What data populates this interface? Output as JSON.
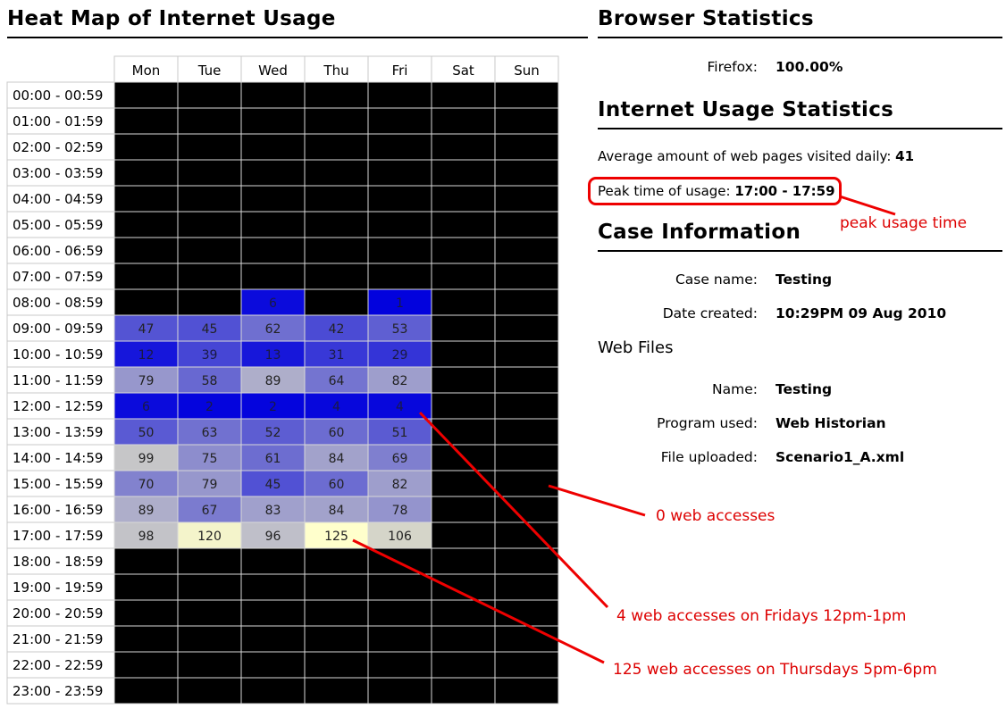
{
  "left_title": "Heat Map of Internet Usage",
  "browser": {
    "title": "Browser Statistics",
    "rows": [
      {
        "label": "Firefox:",
        "value": "100.00%"
      }
    ]
  },
  "usage": {
    "title": "Internet Usage Statistics",
    "avg_label": "Average amount of web pages visited daily:",
    "avg_value": "41",
    "peak_label": "Peak time of usage:",
    "peak_value": "17:00 - 17:59"
  },
  "case": {
    "title": "Case Information",
    "name_label": "Case name:",
    "name_value": "Testing",
    "date_label": "Date created:",
    "date_value": "10:29PM 09 Aug 2010"
  },
  "web_files": {
    "title": "Web Files",
    "name_label": "Name:",
    "name_value": "Testing",
    "program_label": "Program used:",
    "program_value": "Web Historian",
    "file_label": "File uploaded:",
    "file_value": "Scenario1_A.xml"
  },
  "annotations": {
    "peak": "peak usage time",
    "zero": "0 web accesses",
    "fri": "4 web accesses on Fridays 12pm-1pm",
    "thu": "125 web accesses on Thursdays 5pm-6pm"
  },
  "colors": {
    "annotation": "#dd0000",
    "empty_cell": "#000000",
    "low": "#0000dd",
    "mid": "#b0b0d8",
    "high": "#ffffcc"
  },
  "chart_data": {
    "type": "heatmap",
    "title": "Heat Map of Internet Usage",
    "columns": [
      "Mon",
      "Tue",
      "Wed",
      "Thu",
      "Fri",
      "Sat",
      "Sun"
    ],
    "rows": [
      "00:00 - 00:59",
      "01:00 - 01:59",
      "02:00 - 02:59",
      "03:00 - 03:59",
      "04:00 - 04:59",
      "05:00 - 05:59",
      "06:00 - 06:59",
      "07:00 - 07:59",
      "08:00 - 08:59",
      "09:00 - 09:59",
      "10:00 - 10:59",
      "11:00 - 11:59",
      "12:00 - 12:59",
      "13:00 - 13:59",
      "14:00 - 14:59",
      "15:00 - 15:59",
      "16:00 - 16:59",
      "17:00 - 17:59",
      "18:00 - 18:59",
      "19:00 - 19:59",
      "20:00 - 20:59",
      "21:00 - 21:59",
      "22:00 - 22:59",
      "23:00 - 23:59"
    ],
    "values": [
      [
        null,
        null,
        null,
        null,
        null,
        null,
        null
      ],
      [
        null,
        null,
        null,
        null,
        null,
        null,
        null
      ],
      [
        null,
        null,
        null,
        null,
        null,
        null,
        null
      ],
      [
        null,
        null,
        null,
        null,
        null,
        null,
        null
      ],
      [
        null,
        null,
        null,
        null,
        null,
        null,
        null
      ],
      [
        null,
        null,
        null,
        null,
        null,
        null,
        null
      ],
      [
        null,
        null,
        null,
        null,
        null,
        null,
        null
      ],
      [
        null,
        null,
        null,
        null,
        null,
        null,
        null
      ],
      [
        null,
        null,
        6,
        null,
        1,
        null,
        null
      ],
      [
        47,
        45,
        62,
        42,
        53,
        null,
        null
      ],
      [
        12,
        39,
        13,
        31,
        29,
        null,
        null
      ],
      [
        79,
        58,
        89,
        64,
        82,
        null,
        null
      ],
      [
        6,
        2,
        2,
        4,
        4,
        null,
        null
      ],
      [
        50,
        63,
        52,
        60,
        51,
        null,
        null
      ],
      [
        99,
        75,
        61,
        84,
        69,
        null,
        null
      ],
      [
        70,
        79,
        45,
        60,
        82,
        null,
        null
      ],
      [
        89,
        67,
        83,
        84,
        78,
        null,
        null
      ],
      [
        98,
        120,
        96,
        125,
        106,
        null,
        null
      ],
      [
        null,
        null,
        null,
        null,
        null,
        null,
        null
      ],
      [
        null,
        null,
        null,
        null,
        null,
        null,
        null
      ],
      [
        null,
        null,
        null,
        null,
        null,
        null,
        null
      ],
      [
        null,
        null,
        null,
        null,
        null,
        null,
        null
      ],
      [
        null,
        null,
        null,
        null,
        null,
        null,
        null
      ],
      [
        null,
        null,
        null,
        null,
        null,
        null,
        null
      ]
    ]
  }
}
